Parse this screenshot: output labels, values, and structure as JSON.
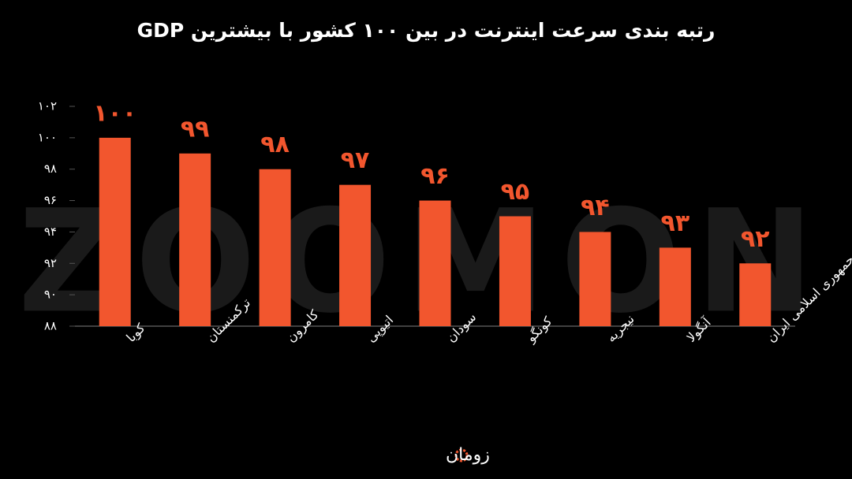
{
  "chart_data": {
    "type": "bar",
    "title": "رتبه بندی سرعت اینترنت در بین ۱۰۰ کشور با بیشترین GDP",
    "categories": [
      "کوبا",
      "ترکمنستان",
      "کامرون",
      "اتیوپی",
      "سودان",
      "کونگو",
      "نیجریه",
      "آنگولا",
      "جمهوری اسلامی ایران"
    ],
    "values": [
      100,
      99,
      98,
      97,
      96,
      95,
      94,
      93,
      92
    ],
    "value_labels": [
      "۱۰۰",
      "۹۹",
      "۹۸",
      "۹۷",
      "۹۶",
      "۹۵",
      "۹۴",
      "۹۳",
      "۹۲"
    ],
    "color": "#f2562e",
    "ylim": [
      88,
      102
    ],
    "yticks": [
      {
        "value": 88,
        "label": "۸۸"
      },
      {
        "value": 90,
        "label": "۹۰"
      },
      {
        "value": 92,
        "label": "۹۲"
      },
      {
        "value": 94,
        "label": "۹۴"
      },
      {
        "value": 96,
        "label": "۹۶"
      },
      {
        "value": 98,
        "label": "۹۸"
      },
      {
        "value": 100,
        "label": "۱۰۰"
      },
      {
        "value": 102,
        "label": "۱۰۲"
      }
    ],
    "grid": false,
    "watermark": "ZOOMON",
    "brand": "زومان"
  }
}
